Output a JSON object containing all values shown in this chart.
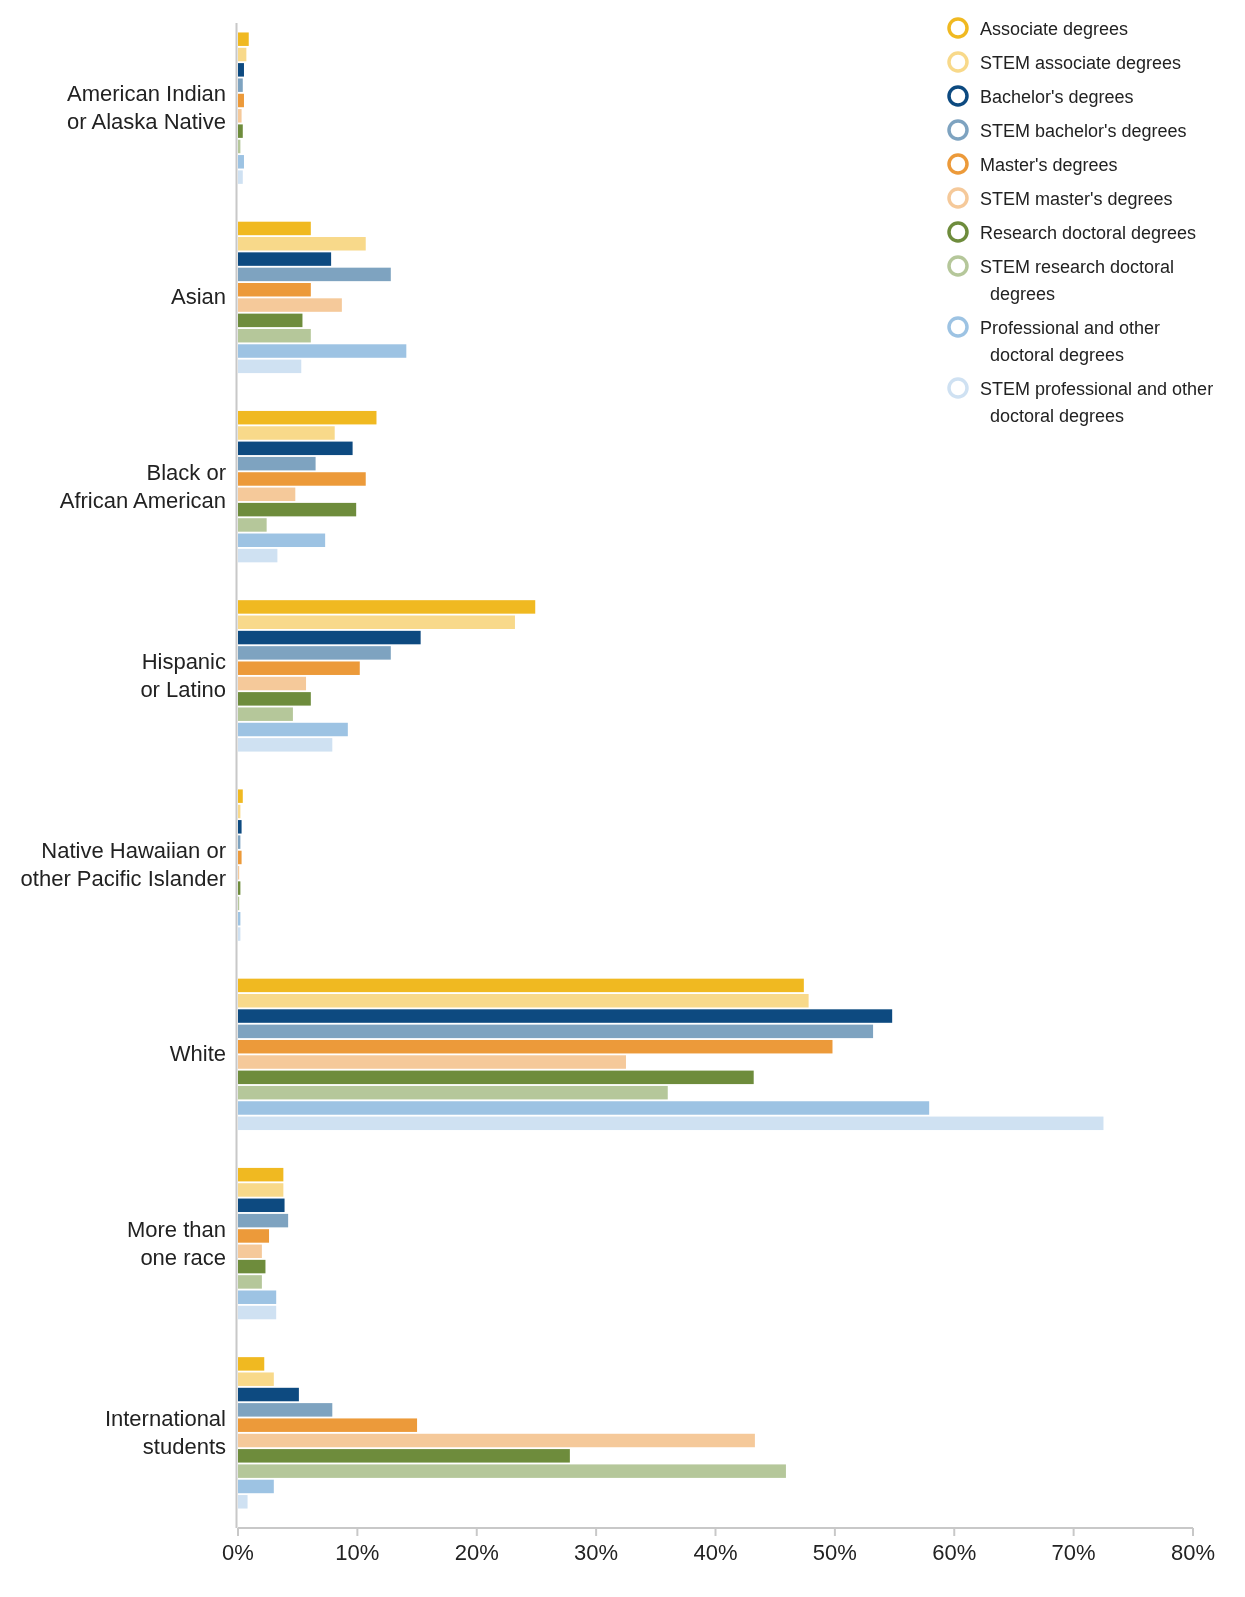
{
  "chart_data": {
    "type": "bar",
    "orientation": "horizontal",
    "categories": [
      "American Indian\nor Alaska Native",
      "Asian",
      "Black or\nAfrican American",
      "Hispanic\nor Latino",
      "Native Hawaiian or\nother Pacific Islander",
      "White",
      "More than\none race",
      "International\nstudents"
    ],
    "series": [
      {
        "name": "Associate degrees",
        "color": "#f0b921",
        "values": [
          0.9,
          6.1,
          11.6,
          24.9,
          0.4,
          47.4,
          3.8,
          2.2
        ]
      },
      {
        "name": "STEM associate degrees",
        "color": "#f8d98a",
        "values": [
          0.7,
          10.7,
          8.1,
          23.2,
          0.2,
          47.8,
          3.8,
          3.0
        ]
      },
      {
        "name": "Bachelor's degrees",
        "color": "#0d4a80",
        "values": [
          0.5,
          7.8,
          9.6,
          15.3,
          0.3,
          54.8,
          3.9,
          5.1
        ]
      },
      {
        "name": "STEM bachelor's degrees",
        "color": "#7ea3c0",
        "values": [
          0.4,
          12.8,
          6.5,
          12.8,
          0.2,
          53.2,
          4.2,
          7.9
        ]
      },
      {
        "name": "Master's degrees",
        "color": "#ec9a3a",
        "values": [
          0.5,
          6.1,
          10.7,
          10.2,
          0.3,
          49.8,
          2.6,
          15.0
        ]
      },
      {
        "name": "STEM master's degrees",
        "color": "#f5c99a",
        "values": [
          0.3,
          8.7,
          4.8,
          5.7,
          0.1,
          32.5,
          2.0,
          43.3
        ]
      },
      {
        "name": "Research doctoral degrees",
        "color": "#6e8c3c",
        "values": [
          0.4,
          5.4,
          9.9,
          6.1,
          0.2,
          43.2,
          2.3,
          27.8
        ]
      },
      {
        "name": "STEM research doctoral degrees",
        "color": "#b5c79a",
        "values": [
          0.2,
          6.1,
          2.4,
          4.6,
          0.1,
          36.0,
          2.0,
          45.9
        ]
      },
      {
        "name": "Professional and other doctoral degrees",
        "color": "#9dc3e3",
        "values": [
          0.5,
          14.1,
          7.3,
          9.2,
          0.2,
          57.9,
          3.2,
          3.0
        ]
      },
      {
        "name": "STEM professional and other doctoral degrees",
        "color": "#cfe1f2",
        "values": [
          0.4,
          5.3,
          3.3,
          7.9,
          0.2,
          72.5,
          3.2,
          0.8
        ]
      }
    ],
    "xlim": [
      0,
      80
    ],
    "xticks": [
      {
        "value": 0,
        "label": "0%"
      },
      {
        "value": 10,
        "label": "10%"
      },
      {
        "value": 20,
        "label": "20%"
      },
      {
        "value": 30,
        "label": "30%"
      },
      {
        "value": 40,
        "label": "40%"
      },
      {
        "value": 50,
        "label": "50%"
      },
      {
        "value": 60,
        "label": "60%"
      },
      {
        "value": 70,
        "label": "70%"
      },
      {
        "value": 80,
        "label": "80%"
      }
    ],
    "grid": false,
    "legend": "top right"
  }
}
